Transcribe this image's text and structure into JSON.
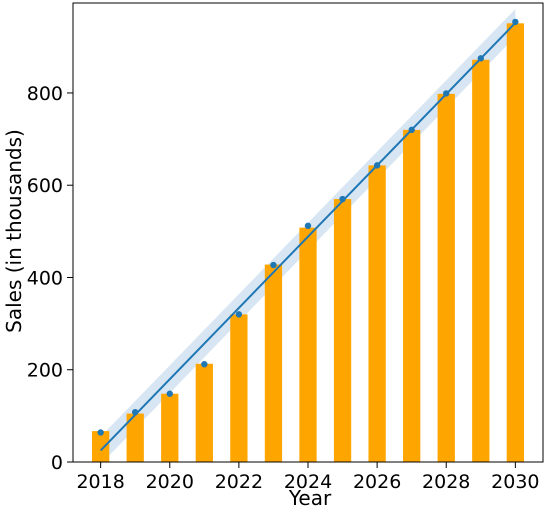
{
  "chart_data": {
    "type": "bar",
    "title": "",
    "xlabel": "Year",
    "ylabel": "Sales (in thousands)",
    "xlim": [
      2017.2,
      2030.8
    ],
    "ylim": [
      0,
      995
    ],
    "xticks": [
      2018,
      2020,
      2022,
      2024,
      2026,
      2028,
      2030
    ],
    "yticks": [
      0,
      200,
      400,
      600,
      800
    ],
    "grid": false,
    "legend": "none",
    "categories": [
      2018,
      2019,
      2020,
      2021,
      2022,
      2023,
      2024,
      2025,
      2026,
      2027,
      2028,
      2029,
      2030
    ],
    "series": [
      {
        "type": "bar",
        "color": "#FFA500",
        "values": [
          67,
          105,
          148,
          213,
          320,
          428,
          508,
          570,
          643,
          720,
          798,
          872,
          951
        ]
      },
      {
        "type": "scatter",
        "color": "#1f77b4",
        "values": [
          64,
          108,
          148,
          212,
          320,
          427,
          512,
          570,
          643,
          720,
          799,
          875,
          954
        ]
      },
      {
        "type": "regression-line",
        "color": "#1f77b4",
        "ci_color": "#a9c8e6",
        "x": [
          2018,
          2030
        ],
        "values": [
          25,
          952
        ],
        "ci_halfwidth": 30
      }
    ]
  }
}
